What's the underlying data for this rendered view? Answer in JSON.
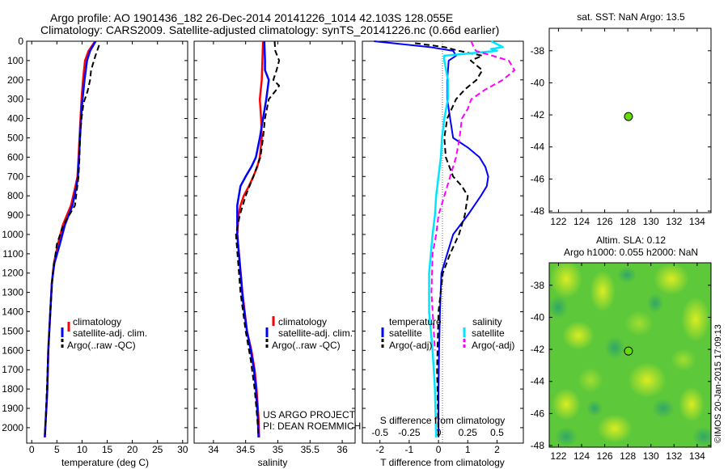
{
  "header": {
    "line1": "Argo profile: AO 1901436_182 26-Dec-2014 20141226_1014 42.103S 128.055E",
    "line2": "Climatology: CARS2009. Satellite-adjusted climatology: synTS_20141226.nc (0.66d earlier)"
  },
  "colors": {
    "climatology": "#ff0000",
    "satellite": "#0000ff",
    "argo": "#000000",
    "salinity_satellite": "#00e5ff",
    "salinity_argo": "#ff00ff",
    "marker": "#66dd00"
  },
  "chart_data": [
    {
      "type": "line",
      "name": "temperature-profile",
      "xlabel": "temperature (deg C)",
      "ylabel": "",
      "xlim": [
        -1,
        31
      ],
      "ylim": [
        2080,
        0
      ],
      "xticks": [
        0,
        5,
        10,
        15,
        20,
        25,
        30
      ],
      "yticks": [
        0,
        100,
        200,
        300,
        400,
        500,
        600,
        700,
        800,
        900,
        1000,
        1100,
        1200,
        1300,
        1400,
        1500,
        1600,
        1700,
        1800,
        1900,
        2000
      ],
      "legend": {
        "position": "bottom-center",
        "entries": [
          "climatology",
          "satellite-adj. clim.",
          "Argo(..raw -QC)"
        ]
      },
      "series": [
        {
          "name": "climatology",
          "x": [
            12.6,
            11.3,
            10.6,
            10.2,
            9.9,
            9.7,
            9.5,
            9.3,
            9.1,
            8.7,
            7.8,
            6.2,
            5.2,
            4.4,
            4.0,
            3.7,
            3.3,
            3.1,
            2.9,
            2.7,
            2.6
          ],
          "y": [
            0,
            50,
            100,
            200,
            300,
            400,
            500,
            600,
            700,
            750,
            850,
            950,
            1050,
            1150,
            1250,
            1400,
            1600,
            1800,
            1900,
            2000,
            2050
          ]
        },
        {
          "name": "satellite-adj. clim.",
          "x": [
            12.7,
            11.6,
            11.0,
            10.5,
            10.1,
            9.8,
            9.6,
            9.4,
            9.2,
            8.9,
            8.1,
            6.6,
            5.6,
            4.5,
            4.0,
            3.7,
            3.3,
            3.1,
            2.9,
            2.7,
            2.6
          ],
          "y": [
            0,
            50,
            100,
            200,
            300,
            400,
            500,
            600,
            700,
            750,
            850,
            950,
            1050,
            1150,
            1250,
            1400,
            1600,
            1800,
            1900,
            2000,
            2050
          ]
        },
        {
          "name": "Argo(..raw -QC)",
          "x": [
            13.4,
            13.0,
            12.6,
            11.8,
            11.6,
            11.1,
            10.3,
            9.9,
            9.6,
            9.5,
            9.3,
            8.6,
            6.3,
            5.0,
            4.2,
            3.7,
            3.3,
            3.0,
            2.8,
            2.6
          ],
          "y": [
            20,
            50,
            80,
            150,
            200,
            260,
            320,
            400,
            500,
            600,
            700,
            850,
            950,
            1050,
            1200,
            1400,
            1600,
            1800,
            1950,
            2050
          ]
        }
      ]
    },
    {
      "type": "line",
      "name": "salinity-profile",
      "xlabel": "salinity",
      "ylabel": "",
      "xlim": [
        33.7,
        36.2
      ],
      "ylim": [
        2080,
        0
      ],
      "xticks": [
        34,
        34.5,
        35,
        35.5,
        36
      ],
      "legend": {
        "position": "bottom-center",
        "entries": [
          "climatology",
          "satellite-adj. clim.",
          "Argo(..raw -QC)"
        ]
      },
      "annotation": [
        "US ARGO PROJECT",
        "PI: DEAN ROEMMICH"
      ],
      "series": [
        {
          "name": "climatology",
          "x": [
            34.77,
            34.76,
            34.75,
            34.72,
            34.74,
            34.75,
            34.72,
            34.68,
            34.62,
            34.55,
            34.47,
            34.42,
            34.39,
            34.37,
            34.45,
            34.52,
            34.59,
            34.64,
            34.67,
            34.7,
            34.71
          ],
          "y": [
            0,
            100,
            200,
            300,
            400,
            500,
            600,
            650,
            700,
            750,
            800,
            850,
            900,
            1000,
            1300,
            1500,
            1600,
            1700,
            1800,
            1950,
            2050
          ]
        },
        {
          "name": "satellite-adj. clim.",
          "x": [
            34.79,
            34.8,
            34.8,
            34.86,
            34.82,
            34.77,
            34.72,
            34.66,
            34.59,
            34.5,
            34.42,
            34.37,
            34.37,
            34.46,
            34.52,
            34.58,
            34.63,
            34.66,
            34.69,
            34.7
          ],
          "y": [
            0,
            100,
            150,
            200,
            300,
            400,
            500,
            600,
            650,
            700,
            750,
            850,
            1000,
            1350,
            1500,
            1600,
            1700,
            1800,
            1950,
            2050
          ]
        },
        {
          "name": "Argo(..raw -QC)",
          "x": [
            34.95,
            34.96,
            35.02,
            34.98,
            34.93,
            35.02,
            34.98,
            34.86,
            34.8,
            34.77,
            34.73,
            34.62,
            34.5,
            34.41,
            34.35,
            34.42,
            34.5,
            34.58,
            34.64,
            34.68,
            34.7
          ],
          "y": [
            0,
            50,
            100,
            150,
            200,
            230,
            250,
            300,
            400,
            500,
            600,
            700,
            800,
            900,
            1000,
            1300,
            1500,
            1650,
            1800,
            1950,
            2050
          ]
        }
      ]
    },
    {
      "type": "line",
      "name": "difference-profile",
      "xlabel": "T difference from climatology",
      "ylabel": "",
      "top_axis_label": "S difference from climatology",
      "xlim": [
        -2.6,
        2.9
      ],
      "ylim": [
        2080,
        0
      ],
      "xticks": [
        -2,
        -1,
        0,
        1,
        2
      ],
      "xticks_salinity": [
        -0.5,
        -0.25,
        0,
        0.25,
        0.5
      ],
      "legend": {
        "position": "bottom-center",
        "headers": [
          "temperature",
          "salinity"
        ],
        "entries": [
          "satellite",
          "Argo(-adj)",
          "satellite",
          "Argo(-adj)"
        ]
      },
      "series": [
        {
          "name": "temperature satellite",
          "x": [
            -2.2,
            -0.3,
            0.5,
            0.6,
            0.35,
            0.3,
            0.3,
            0.4,
            0.5,
            1.0,
            1.4,
            1.6,
            1.7,
            1.65,
            1.45,
            1.0,
            0.5,
            0.3,
            0.1,
            0.05,
            0.02,
            0.0,
            0.0
          ],
          "y": [
            0,
            30,
            50,
            75,
            100,
            200,
            300,
            400,
            500,
            550,
            600,
            650,
            700,
            750,
            800,
            900,
            1000,
            1100,
            1200,
            1400,
            1600,
            1800,
            2050
          ]
        },
        {
          "name": "temperature Argo(-adj)",
          "x": [
            -0.8,
            0.2,
            0.7,
            1.5,
            1.1,
            1.5,
            1.3,
            0.9,
            0.6,
            0.3,
            0.2,
            0.25,
            0.5,
            0.8,
            1.0,
            0.9,
            0.7,
            0.4,
            0.15,
            0.0,
            -0.05,
            0.0
          ],
          "y": [
            10,
            30,
            50,
            75,
            100,
            150,
            200,
            250,
            300,
            400,
            500,
            600,
            700,
            750,
            800,
            900,
            1000,
            1100,
            1200,
            1400,
            1700,
            2050
          ]
        },
        {
          "name": "salinity satellite",
          "x": [
            0.45,
            0.55,
            0.45,
            0.5,
            0.05,
            0.05,
            0.08,
            0.08,
            0.05,
            0.03,
            0.02,
            0.0,
            -0.02,
            -0.03,
            -0.05,
            -0.08,
            -0.08,
            -0.05,
            -0.03,
            -0.02
          ],
          "y": [
            0,
            30,
            40,
            50,
            75,
            100,
            200,
            300,
            400,
            500,
            600,
            700,
            800,
            900,
            1000,
            1200,
            1400,
            1600,
            1800,
            2050
          ]
        },
        {
          "name": "salinity Argo(-adj)",
          "x": [
            0.28,
            0.3,
            0.32,
            0.6,
            0.65,
            0.55,
            0.4,
            0.28,
            0.25,
            0.2,
            0.18,
            0.15,
            0.1,
            0.05,
            0.0,
            -0.02,
            -0.05,
            -0.06,
            -0.03
          ],
          "y": [
            0,
            30,
            50,
            100,
            150,
            200,
            250,
            300,
            350,
            400,
            500,
            600,
            700,
            800,
            900,
            1000,
            1100,
            1300,
            1600
          ]
        }
      ]
    },
    {
      "type": "scatter",
      "name": "sst-map",
      "title": "sat. SST: NaN Argo: 13.5",
      "xlabel": "",
      "ylabel": "",
      "xlim": [
        121.2,
        135.2
      ],
      "ylim": [
        -48.1,
        -36.6
      ],
      "xticks": [
        122,
        124,
        126,
        128,
        130,
        132,
        134
      ],
      "yticks": [
        -38,
        -40,
        -42,
        -44,
        -46,
        -48
      ],
      "points": [
        {
          "x": 128.055,
          "y": -42.103
        }
      ]
    },
    {
      "type": "heatmap",
      "name": "sla-map",
      "title": "Altim. SLA: 0.12",
      "subtitle": "Argo h1000: 0.055 h2000: NaN",
      "xlabel": "",
      "ylabel": "",
      "xlim": [
        121.2,
        135.2
      ],
      "ylim": [
        -48.1,
        -36.6
      ],
      "xticks": [
        122,
        124,
        126,
        128,
        130,
        132,
        134
      ],
      "yticks": [
        -38,
        -40,
        -42,
        -44,
        -46,
        -48
      ],
      "points": [
        {
          "x": 128.055,
          "y": -42.103
        }
      ]
    }
  ],
  "credit": "©IMOS 20-Jan-2015 17:09:13"
}
